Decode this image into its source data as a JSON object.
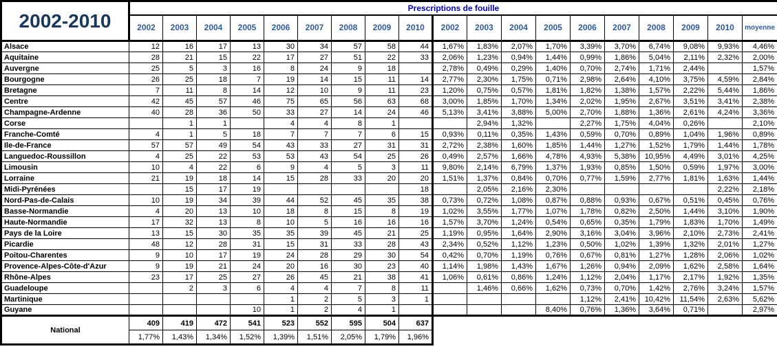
{
  "colors": {
    "title_text": "#17375D",
    "year_header_text": "#2E5B9F",
    "section_header_text": "#0000CC",
    "grid_line": "#000000",
    "background": "#FFFFFF"
  },
  "chart_data": {
    "type": "table",
    "title": "2002-2010",
    "section_title": "Prescriptions de fouille",
    "count_years": [
      "2002",
      "2003",
      "2004",
      "2005",
      "2006",
      "2007",
      "2008",
      "2009",
      "2010"
    ],
    "pct_years": [
      "2002",
      "2003",
      "2004",
      "2005",
      "2006",
      "2007",
      "2008",
      "2009",
      "2010",
      "moyenne"
    ],
    "rows": [
      {
        "region": "Alsace",
        "counts": [
          "12",
          "16",
          "17",
          "13",
          "30",
          "34",
          "57",
          "58",
          "44"
        ],
        "pcts": [
          "1,67%",
          "1,83%",
          "2,07%",
          "1,70%",
          "3,39%",
          "3,70%",
          "6,74%",
          "9,08%",
          "9,93%"
        ],
        "moyenne": "4,46%"
      },
      {
        "region": "Aquitaine",
        "counts": [
          "28",
          "21",
          "15",
          "22",
          "17",
          "27",
          "51",
          "22",
          "33"
        ],
        "pcts": [
          "2,06%",
          "1,23%",
          "0,94%",
          "1,44%",
          "0,99%",
          "1,86%",
          "5,04%",
          "2,11%",
          "2,32%"
        ],
        "moyenne": "2,00%"
      },
      {
        "region": "Auvergne",
        "counts": [
          "25",
          "5",
          "3",
          "16",
          "8",
          "24",
          "9",
          "18",
          ""
        ],
        "pcts": [
          "2,78%",
          "0,49%",
          "0,29%",
          "1,40%",
          "0,70%",
          "2,74%",
          "1,71%",
          "2,44%",
          ""
        ],
        "moyenne": "1,57%"
      },
      {
        "region": "Bourgogne",
        "counts": [
          "26",
          "25",
          "18",
          "7",
          "19",
          "14",
          "15",
          "11",
          "14"
        ],
        "pcts": [
          "2,77%",
          "2,30%",
          "1,75%",
          "0,71%",
          "2,98%",
          "2,64%",
          "4,10%",
          "3,75%",
          "4,59%"
        ],
        "moyenne": "2,84%"
      },
      {
        "region": "Bretagne",
        "counts": [
          "7",
          "11",
          "8",
          "14",
          "12",
          "10",
          "9",
          "11",
          "23"
        ],
        "pcts": [
          "1,20%",
          "0,75%",
          "0,57%",
          "1,81%",
          "1,82%",
          "1,38%",
          "1,57%",
          "2,22%",
          "5,44%"
        ],
        "moyenne": "1,86%"
      },
      {
        "region": "Centre",
        "counts": [
          "42",
          "45",
          "57",
          "46",
          "75",
          "65",
          "56",
          "63",
          "68"
        ],
        "pcts": [
          "3,00%",
          "1,85%",
          "1,70%",
          "1,34%",
          "2,02%",
          "1,95%",
          "2,67%",
          "3,51%",
          "3,41%"
        ],
        "moyenne": "2,38%"
      },
      {
        "region": "Champagne-Ardenne",
        "counts": [
          "40",
          "28",
          "36",
          "50",
          "33",
          "27",
          "14",
          "24",
          "46"
        ],
        "pcts": [
          "5,13%",
          "3,41%",
          "3,88%",
          "5,00%",
          "2,70%",
          "1,88%",
          "1,36%",
          "2,61%",
          "4,24%"
        ],
        "moyenne": "3,36%"
      },
      {
        "region": "Corse",
        "counts": [
          "",
          "1",
          "1",
          "",
          "4",
          "4",
          "8",
          "1",
          ""
        ],
        "pcts": [
          "",
          "2,94%",
          "1,32%",
          "",
          "2,27%",
          "1,75%",
          "4,04%",
          "0,26%",
          ""
        ],
        "moyenne": "2,10%"
      },
      {
        "region": "Franche-Comté",
        "counts": [
          "4",
          "1",
          "5",
          "18",
          "7",
          "7",
          "7",
          "6",
          "15"
        ],
        "pcts": [
          "0,93%",
          "0,11%",
          "0,35%",
          "1,43%",
          "0,59%",
          "0,70%",
          "0,89%",
          "1,04%",
          "1,96%"
        ],
        "moyenne": "0,89%"
      },
      {
        "region": "Ile-de-France",
        "counts": [
          "57",
          "57",
          "49",
          "54",
          "43",
          "33",
          "27",
          "31",
          "31"
        ],
        "pcts": [
          "2,72%",
          "2,38%",
          "1,60%",
          "1,85%",
          "1,44%",
          "1,27%",
          "1,52%",
          "1,79%",
          "1,44%"
        ],
        "moyenne": "1,78%"
      },
      {
        "region": "Languedoc-Roussillon",
        "counts": [
          "4",
          "25",
          "22",
          "53",
          "53",
          "43",
          "54",
          "25",
          "26"
        ],
        "pcts": [
          "0,49%",
          "2,57%",
          "1,66%",
          "4,78%",
          "4,93%",
          "5,38%",
          "10,95%",
          "4,49%",
          "3,01%"
        ],
        "moyenne": "4,25%"
      },
      {
        "region": "Limousin",
        "counts": [
          "10",
          "4",
          "22",
          "6",
          "9",
          "4",
          "5",
          "3",
          "11"
        ],
        "pcts": [
          "9,80%",
          "2,14%",
          "6,79%",
          "1,37%",
          "1,93%",
          "0,85%",
          "1,50%",
          "0,59%",
          "1,97%"
        ],
        "moyenne": "3,00%"
      },
      {
        "region": "Lorraine",
        "counts": [
          "21",
          "19",
          "18",
          "14",
          "15",
          "28",
          "33",
          "20",
          "20"
        ],
        "pcts": [
          "1,51%",
          "1,37%",
          "0,84%",
          "0,70%",
          "0,77%",
          "1,59%",
          "2,77%",
          "1,81%",
          "1,63%"
        ],
        "moyenne": "1,44%"
      },
      {
        "region": "Midi-Pyrénées",
        "counts": [
          "",
          "15",
          "17",
          "19",
          "",
          "",
          "",
          "",
          "18"
        ],
        "pcts": [
          "",
          "2,05%",
          "2,16%",
          "2,30%",
          "",
          "",
          "",
          "",
          "2,22%"
        ],
        "moyenne": "2,18%"
      },
      {
        "region": "Nord-Pas-de-Calais",
        "counts": [
          "10",
          "19",
          "34",
          "39",
          "44",
          "52",
          "45",
          "35",
          "38"
        ],
        "pcts": [
          "0,73%",
          "0,72%",
          "1,08%",
          "0,87%",
          "0,88%",
          "0,93%",
          "0,67%",
          "0,51%",
          "0,45%"
        ],
        "moyenne": "0,76%"
      },
      {
        "region": "Basse-Normandie",
        "counts": [
          "4",
          "20",
          "13",
          "10",
          "18",
          "8",
          "15",
          "8",
          "19"
        ],
        "pcts": [
          "1,02%",
          "3,55%",
          "1,77%",
          "1,07%",
          "1,78%",
          "0,82%",
          "2,50%",
          "1,44%",
          "3,10%"
        ],
        "moyenne": "1,90%"
      },
      {
        "region": "Haute-Normandie",
        "counts": [
          "17",
          "32",
          "13",
          "8",
          "10",
          "5",
          "16",
          "16",
          "16"
        ],
        "pcts": [
          "1,57%",
          "3,70%",
          "1,24%",
          "0,54%",
          "0,65%",
          "0,35%",
          "1,79%",
          "1,83%",
          "1,70%"
        ],
        "moyenne": "1,49%"
      },
      {
        "region": "Pays de la Loire",
        "counts": [
          "13",
          "15",
          "30",
          "35",
          "35",
          "39",
          "45",
          "21",
          "25"
        ],
        "pcts": [
          "1,19%",
          "0,95%",
          "1,64%",
          "2,90%",
          "3,16%",
          "3,04%",
          "3,96%",
          "2,10%",
          "2,73%"
        ],
        "moyenne": "2,41%"
      },
      {
        "region": "Picardie",
        "counts": [
          "48",
          "12",
          "28",
          "31",
          "15",
          "31",
          "33",
          "28",
          "43"
        ],
        "pcts": [
          "2,34%",
          "0,52%",
          "1,12%",
          "1,23%",
          "0,50%",
          "1,02%",
          "1,39%",
          "1,32%",
          "2,01%"
        ],
        "moyenne": "1,27%"
      },
      {
        "region": "Poitou-Charentes",
        "counts": [
          "9",
          "10",
          "17",
          "19",
          "24",
          "28",
          "29",
          "30",
          "54"
        ],
        "pcts": [
          "0,42%",
          "0,70%",
          "1,19%",
          "0,76%",
          "0,67%",
          "0,81%",
          "1,27%",
          "1,28%",
          "2,06%"
        ],
        "moyenne": "1,02%"
      },
      {
        "region": "Provence-Alpes-Côte-d'Azur",
        "counts": [
          "9",
          "19",
          "21",
          "24",
          "20",
          "16",
          "30",
          "23",
          "40"
        ],
        "pcts": [
          "1,14%",
          "1,98%",
          "1,43%",
          "1,67%",
          "1,26%",
          "0,94%",
          "2,09%",
          "1,62%",
          "2,58%"
        ],
        "moyenne": "1,64%"
      },
      {
        "region": "Rhône-Alpes",
        "counts": [
          "23",
          "17",
          "25",
          "27",
          "26",
          "45",
          "21",
          "38",
          "41"
        ],
        "pcts": [
          "1,06%",
          "0,61%",
          "0,86%",
          "1,24%",
          "1,12%",
          "2,04%",
          "1,17%",
          "2,17%",
          "1,92%"
        ],
        "moyenne": "1,35%"
      },
      {
        "region": "Guadeloupe",
        "counts": [
          "",
          "2",
          "3",
          "6",
          "4",
          "4",
          "7",
          "8",
          "11"
        ],
        "pcts": [
          "",
          "1,46%",
          "0,66%",
          "1,62%",
          "0,73%",
          "0,70%",
          "1,42%",
          "2,76%",
          "3,24%"
        ],
        "moyenne": "1,57%"
      },
      {
        "region": "Martinique",
        "counts": [
          "",
          "",
          "",
          "",
          "1",
          "2",
          "5",
          "3",
          "1"
        ],
        "pcts": [
          "",
          "",
          "",
          "",
          "1,12%",
          "2,41%",
          "10,42%",
          "11,54%",
          "2,63%"
        ],
        "moyenne": "5,62%"
      },
      {
        "region": "Guyane",
        "counts": [
          "",
          "",
          "",
          "10",
          "1",
          "2",
          "4",
          "1",
          ""
        ],
        "pcts": [
          "",
          "",
          "",
          "8,40%",
          "0,76%",
          "1,36%",
          "3,64%",
          "0,71%",
          ""
        ],
        "moyenne": "2,97%"
      }
    ],
    "national": {
      "label": "National",
      "counts": [
        "409",
        "419",
        "472",
        "541",
        "523",
        "552",
        "595",
        "504",
        "637"
      ],
      "pcts": [
        "1,77%",
        "1,43%",
        "1,34%",
        "1,52%",
        "1,39%",
        "1,51%",
        "2,05%",
        "1,79%",
        "1,96%"
      ]
    }
  }
}
